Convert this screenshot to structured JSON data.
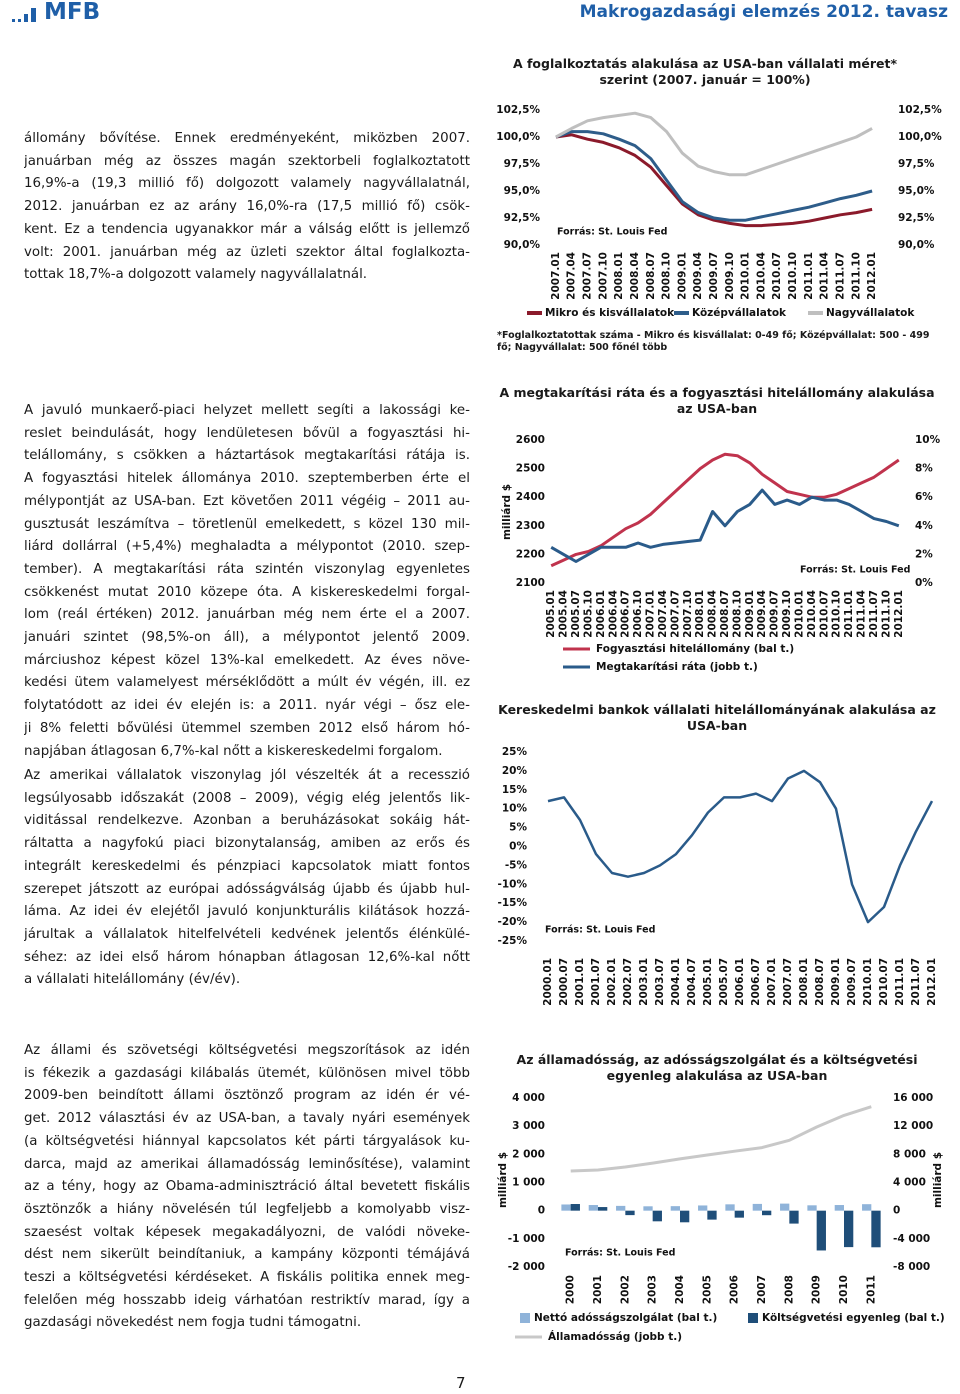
{
  "header": {
    "logo": "MFB",
    "title": "Makrogazdasági elemzés 2012. tavasz"
  },
  "text_blocks": [
    {
      "lines": [
        "állomány bővítése. Ennek eredményeként, miközben 2007.",
        "januárban még az összes magán szektorbeli foglalkoztatott",
        "16,9%-a (19,3 millió fő) dolgozott valamely nagyvállalatnál,",
        "2012. januárban ez az arány 16,0%-ra (17,5 millió fő) csök-",
        "kent. Ez a tendencia ugyanakkor már a válság előtt is jellemző",
        "volt: 2001. januárban még az üzleti szektor által foglalkozta-",
        "tottak 18,7%-a dolgozott valamely nagyvállalatnál."
      ]
    },
    {
      "lines": [
        "A javuló munkaerő-piaci helyzet mellett segíti a lakossági ke-",
        "reslet beindulását, hogy lendületesen bővül a fogyasztási hi-",
        "telállomány, s csökken a háztartások megtakarítási rátája is.",
        "A fogyasztási hitelek állománya 2010. szeptemberben érte el",
        "mélypontját az USA-ban. Ezt követően 2011 végéig – 2011 au-",
        "gusztusát leszámítva – töretlenül emelkedett, s közel 130 mil-",
        "liárd dollárral (+5,4%) meghaladta a mélypontot (2010. szep-",
        "tember). A megtakarítási ráta szintén viszonylag egyenletes",
        "csökkenést mutat 2010 közepe óta. A kiskereskedelmi forgal-",
        "lom (reál értéken) 2012. januárban még nem érte el a 2007.",
        "januári szintet (98,5%-on áll), a mélypontot jelentő 2009.",
        "márciushoz képest közel 13%-kal emelkedett. Az éves növe-",
        "kedési ütem valamelyest mérséklődött a múlt év végén, ill. ez",
        "folytatódott az idei év elején is: a 2011. nyár végi – ősz ele-",
        "ji 8% feletti bővülési ütemmel szemben 2012 első három hó-",
        "napjában átlagosan 6,7%-kal nőtt a kiskereskedelmi forgalom."
      ]
    },
    {
      "lines": [
        "Az amerikai vállalatok viszonylag jól vészelték át a recesszió",
        "legsúlyosabb időszakát (2008 – 2009), végig elég jelentős lik-",
        "viditással rendelkezve. Azonban a beruházásokat sokáig hát-",
        "ráltatta a nagyfokú piaci bizonytalanság, amiben az erős és",
        "integrált kereskedelmi és pénzpiaci kapcsolatok miatt fontos",
        "szerepet játszott az európai adósságválság újabb és újabb hul-",
        "láma. Az idei év elejétől javuló konjunkturális kilátások hozzá-",
        "járultak a vállalatok hitelfelvételi kedvének jelentős élénkülé-",
        "séhez: az idei első három hónapban átlagosan 12,6%-kal nőtt",
        "a vállalati hitelállomány (év/év)."
      ]
    },
    {
      "lines": [
        "Az állami és szövetségi költségvetési megszorítások az idén",
        "is fékezik a gazdasági kilábalás ütemét, különösen mivel több",
        "2009-ben beindított állami ösztönző program az idén ér vé-",
        "get. 2012 választási év az USA-ban, a tavaly nyári események",
        "(a költségvetési hiánnyal kapcsolatos két párti tárgyalások ku-",
        "darca, majd az amerikai államadósság leminősítése), valamint",
        "az a tény, hogy az Obama-adminisztráció által bevetett fiskális",
        "ösztönzők a hiány növelésén túl legfeljebb a komolyabb visz-",
        "szaesést voltak képesek megakadályozni, de valódi növeke-",
        "dést nem sikerült beindítaniuk, a kampány központi témájává",
        "teszi a költségvetési kérdéseket. A fiskális politika ennek meg-",
        "felelően még hosszabb ideig várhatóan restriktív marad, így a",
        "gazdasági növekedést nem fogja tudni támogatni."
      ]
    }
  ],
  "chart_data": [
    {
      "type": "line",
      "title": "A foglalkoztatás alakulása az USA-ban vállalati méret* szerint (2007. január = 100%)",
      "categories": [
        "2007.01",
        "2007.04",
        "2007.07",
        "2007.10",
        "2008.01",
        "2008.04",
        "2008.07",
        "2008.10",
        "2009.01",
        "2009.04",
        "2009.07",
        "2009.10",
        "2010.01",
        "2010.04",
        "2010.07",
        "2010.10",
        "2011.01",
        "2011.04",
        "2011.07",
        "2011.10",
        "2012.01"
      ],
      "series": [
        {
          "name": "Mikro és kisvállalatok",
          "color": "#8b1a2b",
          "values": [
            100,
            100.2,
            99.8,
            99.5,
            99.0,
            98.3,
            97.2,
            95.5,
            93.8,
            92.8,
            92.3,
            92.0,
            91.8,
            91.8,
            91.9,
            92.0,
            92.2,
            92.5,
            92.8,
            93.0,
            93.3
          ]
        },
        {
          "name": "Középvállalatok",
          "color": "#2e5d8a",
          "values": [
            100,
            100.5,
            100.5,
            100.3,
            99.8,
            99.2,
            98.0,
            96.0,
            94.0,
            93.0,
            92.5,
            92.3,
            92.3,
            92.6,
            92.9,
            93.2,
            93.5,
            93.9,
            94.3,
            94.6,
            95.0
          ]
        },
        {
          "name": "Nagyvállalatok",
          "color": "#bfbfbf",
          "values": [
            100,
            100.8,
            101.5,
            101.8,
            102.0,
            102.2,
            101.8,
            100.5,
            98.5,
            97.3,
            96.8,
            96.5,
            96.5,
            97.0,
            97.5,
            98.0,
            98.5,
            99.0,
            99.5,
            100.0,
            100.8
          ]
        }
      ],
      "ylim": [
        90,
        102.5
      ],
      "yticks": [
        {
          "value": 90,
          "label": "90,0%"
        },
        {
          "value": 92.5,
          "label": "92,5%"
        },
        {
          "value": 95,
          "label": "95,0%"
        },
        {
          "value": 97.5,
          "label": "97,5%"
        },
        {
          "value": 100,
          "label": "100,0%"
        },
        {
          "value": 102.5,
          "label": "102,5%"
        }
      ],
      "mirror_y_axis": true,
      "legend": "bottom",
      "source": "Forrás: St. Louis Fed",
      "note": "*Foglalkoztatottak száma - Mikro és kisvállalat: 0-49 fő; Középvállalat: 500 - 499 fő; Nagyvállalat: 500 főnél több"
    },
    {
      "type": "line",
      "title": "A megtakarítási ráta és a fogyasztási hitelállomány alakulása az USA-ban",
      "categories": [
        "2005.01",
        "2005.04",
        "2005.07",
        "2005.10",
        "2006.01",
        "2006.04",
        "2006.07",
        "2006.10",
        "2007.01",
        "2007.04",
        "2007.07",
        "2007.10",
        "2008.01",
        "2008.04",
        "2008.07",
        "2008.10",
        "2009.01",
        "2009.04",
        "2009.07",
        "2009.10",
        "2010.01",
        "2010.04",
        "2010.07",
        "2010.10",
        "2011.01",
        "2011.04",
        "2011.07",
        "2011.10",
        "2012.01"
      ],
      "series": [
        {
          "name": "Fogyasztási hitelállomány (bal t.)",
          "color": "#c0334d",
          "values": [
            2160,
            2180,
            2200,
            2210,
            2230,
            2260,
            2290,
            2310,
            2340,
            2380,
            2420,
            2460,
            2500,
            2530,
            2550,
            2545,
            2520,
            2480,
            2450,
            2420,
            2410,
            2400,
            2400,
            2410,
            2430,
            2450,
            2470,
            2500,
            2530
          ]
        },
        {
          "name": "Megtakarítási ráta (jobb t.)",
          "color": "#2a5b8a",
          "axis": "y2",
          "values": [
            2.5,
            2.0,
            1.5,
            2.0,
            2.5,
            2.5,
            2.5,
            2.8,
            2.5,
            2.7,
            2.8,
            2.9,
            3.0,
            5.0,
            4.0,
            5.0,
            5.5,
            6.5,
            5.5,
            5.8,
            5.5,
            6.0,
            5.8,
            5.8,
            5.5,
            5.0,
            4.5,
            4.3,
            4.0
          ]
        }
      ],
      "ylim": [
        2100,
        2600
      ],
      "yticks": [
        2100,
        2200,
        2300,
        2400,
        2500,
        2600
      ],
      "y2lim": [
        0,
        10
      ],
      "y2ticks": [
        {
          "value": 0,
          "label": "0%"
        },
        {
          "value": 2,
          "label": "2%"
        },
        {
          "value": 4,
          "label": "4%"
        },
        {
          "value": 6,
          "label": "6%"
        },
        {
          "value": 8,
          "label": "8%"
        },
        {
          "value": 10,
          "label": "10%"
        }
      ],
      "y_label": "milliárd $",
      "legend": "bottom",
      "source": "Forrás: St. Louis Fed"
    },
    {
      "type": "line",
      "title": "Kereskedelmi bankok vállalati hitelállományának alakulása az USA-ban",
      "categories": [
        "2000.01",
        "2000.07",
        "2001.01",
        "2001.07",
        "2002.01",
        "2002.07",
        "2003.01",
        "2003.07",
        "2004.01",
        "2004.07",
        "2005.01",
        "2005.07",
        "2006.01",
        "2006.07",
        "2007.01",
        "2007.07",
        "2008.01",
        "2008.07",
        "2009.01",
        "2009.07",
        "2010.01",
        "2010.07",
        "2011.01",
        "2011.07",
        "2012.01"
      ],
      "values": [
        12,
        13,
        7,
        -2,
        -7,
        -8,
        -7,
        -5,
        -2,
        3,
        9,
        13,
        13,
        14,
        12,
        18,
        20,
        17,
        10,
        -10,
        -20,
        -16,
        -5,
        4,
        12
      ],
      "color": "#2a5b8a",
      "ylim": [
        -25,
        25
      ],
      "yticks": [
        {
          "value": -25,
          "label": "-25%"
        },
        {
          "value": -20,
          "label": "-20%"
        },
        {
          "value": -15,
          "label": "-15%"
        },
        {
          "value": -10,
          "label": "-10%"
        },
        {
          "value": -5,
          "label": "-5%"
        },
        {
          "value": 0,
          "label": "0%"
        },
        {
          "value": 5,
          "label": "5%"
        },
        {
          "value": 10,
          "label": "10%"
        },
        {
          "value": 15,
          "label": "15%"
        },
        {
          "value": 20,
          "label": "20%"
        },
        {
          "value": 25,
          "label": "25%"
        }
      ],
      "source": "Forrás: St. Louis Fed"
    },
    {
      "type": "combo",
      "title": "Az államadósság, az adósságszolgálat és a költségvetési egyenleg alakulása az USA-ban",
      "categories": [
        "2000",
        "2001",
        "2002",
        "2003",
        "2004",
        "2005",
        "2006",
        "2007",
        "2008",
        "2009",
        "2010",
        "2011"
      ],
      "series": [
        {
          "name": "Nettó adósságszolgálat (bal t.)",
          "type": "bar",
          "color": "#8fb3d9",
          "values": [
            220,
            200,
            170,
            155,
            160,
            185,
            225,
            240,
            250,
            190,
            200,
            230
          ]
        },
        {
          "name": "Költségvetési egyenleg (bal t.)",
          "type": "bar",
          "color": "#1f4e79",
          "values": [
            236,
            128,
            -158,
            -378,
            -413,
            -318,
            -248,
            -161,
            -459,
            -1413,
            -1294,
            -1300
          ]
        },
        {
          "name": "Államadósság (jobb t.)",
          "type": "line",
          "axis": "y2",
          "color": "#c8c8c8",
          "values": [
            5629,
            5770,
            6198,
            6760,
            7355,
            7905,
            8451,
            8951,
            9986,
            11876,
            13529,
            14764
          ]
        }
      ],
      "ylim": [
        -2000,
        4000
      ],
      "yticks": [
        {
          "value": -2000,
          "label": "-2 000"
        },
        {
          "value": -1000,
          "label": "-1 000"
        },
        0,
        {
          "value": 1000,
          "label": "1 000"
        },
        {
          "value": 2000,
          "label": "2 000"
        },
        {
          "value": 3000,
          "label": "3 000"
        },
        {
          "value": 4000,
          "label": "4 000"
        }
      ],
      "y2lim": [
        -8000,
        16000
      ],
      "y2ticks": [
        {
          "value": -8000,
          "label": "-8 000"
        },
        {
          "value": -4000,
          "label": "-4 000"
        },
        0,
        {
          "value": 4000,
          "label": "4 000"
        },
        {
          "value": 8000,
          "label": "8 000"
        },
        {
          "value": 12000,
          "label": "12 000"
        },
        {
          "value": 16000,
          "label": "16 000"
        }
      ],
      "y_label": "milliárd $",
      "y2_label": "milliárd $",
      "legend": "bottom",
      "source": "Forrás: St. Louis Fed"
    }
  ],
  "page_number": 7
}
